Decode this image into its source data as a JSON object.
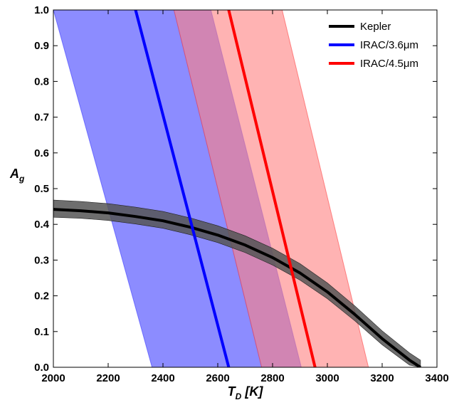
{
  "chart_data": {
    "type": "line",
    "xlabel": "T",
    "xlabel_subscript": "D",
    "xlabel_unit": " [K]",
    "ylabel": "A",
    "ylabel_subscript": "g",
    "xlim": [
      2000,
      3400
    ],
    "ylim": [
      0,
      1.0
    ],
    "x_ticks": [
      2000,
      2200,
      2400,
      2600,
      2800,
      3000,
      3200,
      3400
    ],
    "y_ticks": [
      0,
      0.1,
      0.2,
      0.3,
      0.4,
      0.5,
      0.6,
      0.7,
      0.8,
      0.9,
      1.0
    ],
    "y_tick_labels": [
      "0.0",
      "0.1",
      "0.2",
      "0.3",
      "0.4",
      "0.5",
      "0.6",
      "0.7",
      "0.8",
      "0.9",
      "1.0"
    ],
    "grid": false,
    "legend_position": "top-right",
    "series": [
      {
        "name": "Kepler",
        "color": "#000000",
        "band_color": "#555555",
        "x": [
          2000,
          2100,
          2200,
          2300,
          2400,
          2500,
          2600,
          2700,
          2800,
          2900,
          3000,
          3100,
          3200,
          3300,
          3340
        ],
        "values": [
          0.442,
          0.438,
          0.432,
          0.422,
          0.41,
          0.392,
          0.37,
          0.342,
          0.307,
          0.264,
          0.211,
          0.148,
          0.08,
          0.02,
          0.0
        ],
        "lower": [
          0.42,
          0.417,
          0.411,
          0.401,
          0.389,
          0.371,
          0.349,
          0.321,
          0.286,
          0.244,
          0.192,
          0.13,
          0.063,
          0.006,
          0.0
        ],
        "upper": [
          0.468,
          0.464,
          0.458,
          0.448,
          0.436,
          0.418,
          0.396,
          0.368,
          0.333,
          0.29,
          0.236,
          0.172,
          0.102,
          0.04,
          0.02
        ]
      },
      {
        "name": "IRAC/3.6μm",
        "color": "#0000ff",
        "band_color": "#4040ff",
        "x": [
          2300,
          2640
        ],
        "values": [
          1.0,
          0.0
        ],
        "band_top_x": [
          2000,
          2575
        ],
        "band_bottom_x": [
          2360,
          2905
        ]
      },
      {
        "name": "IRAC/4.5μm",
        "color": "#ff0000",
        "band_color": "#ff8080",
        "x": [
          2640,
          2955
        ],
        "values": [
          1.0,
          0.0
        ],
        "band_top_x": [
          2440,
          2835
        ],
        "band_bottom_x": [
          2760,
          3150
        ]
      }
    ]
  }
}
